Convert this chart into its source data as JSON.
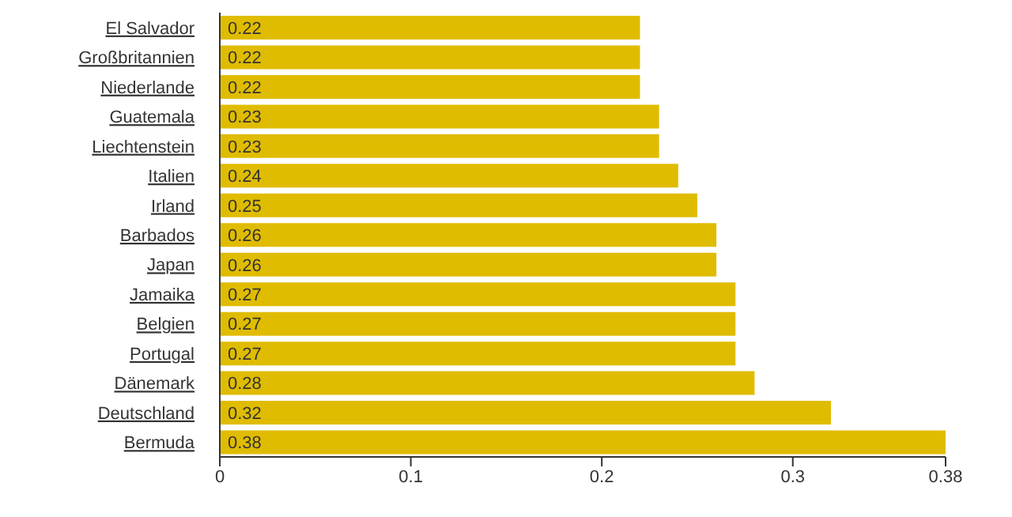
{
  "chart_data": {
    "type": "bar",
    "orientation": "horizontal",
    "categories": [
      "El Salvador",
      "Großbritannien",
      "Niederlande",
      "Guatemala",
      "Liechtenstein",
      "Italien",
      "Irland",
      "Barbados",
      "Japan",
      "Jamaika",
      "Belgien",
      "Portugal",
      "Dänemark",
      "Deutschland",
      "Bermuda"
    ],
    "values": [
      0.22,
      0.22,
      0.22,
      0.23,
      0.23,
      0.24,
      0.25,
      0.26,
      0.26,
      0.27,
      0.27,
      0.27,
      0.28,
      0.32,
      0.38
    ],
    "color": "#e0bc00",
    "xlim": [
      0,
      0.38
    ],
    "xticks": [
      0,
      0.1,
      0.2,
      0.3,
      0.38
    ],
    "data_labels": true,
    "grid": false,
    "legend": false
  }
}
